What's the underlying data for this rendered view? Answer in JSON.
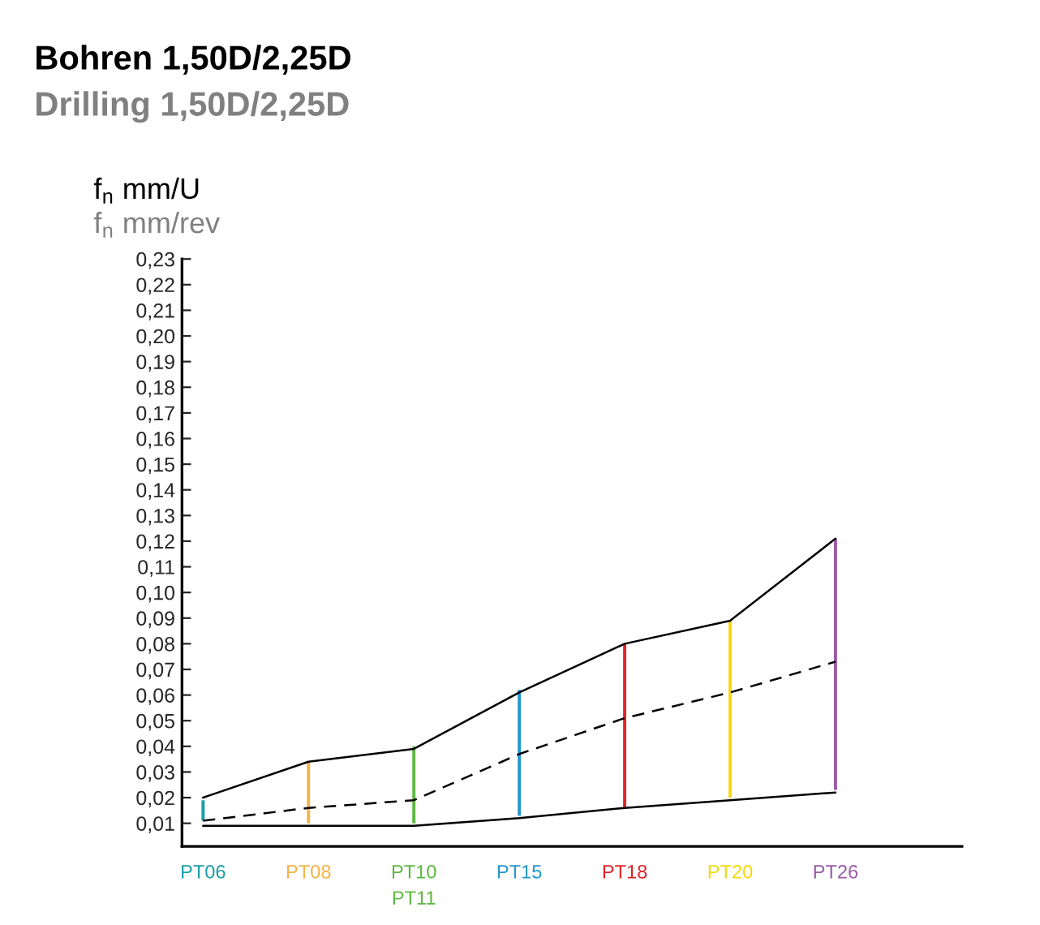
{
  "chart_data": {
    "type": "bar",
    "title": "Bohren 1,50D/2,25D",
    "subtitle": "Drilling 1,50D/2,25D",
    "ylabel": "f$_{n}$ mm/U",
    "annotations": [
      "f$_{n}$ mm/rev"
    ],
    "categories": [
      "PT06",
      "PT08",
      "PT10\nPT11",
      "PT15",
      "PT18",
      "PT20",
      "PT26"
    ],
    "ylim": [
      0.001,
      0.23
    ],
    "yticks": [
      {
        "value": 0.01,
        "label": "0,01"
      },
      {
        "value": 0.02,
        "label": "0,02"
      },
      {
        "value": 0.03,
        "label": "0,03"
      },
      {
        "value": 0.04,
        "label": "0,04"
      },
      {
        "value": 0.05,
        "label": "0,05"
      },
      {
        "value": 0.06,
        "label": "0,06"
      },
      {
        "value": 0.07,
        "label": "0,07"
      },
      {
        "value": 0.08,
        "label": "0,08"
      },
      {
        "value": 0.09,
        "label": "0,09"
      },
      {
        "value": 0.1,
        "label": "0,10"
      },
      {
        "value": 0.11,
        "label": "0,11"
      },
      {
        "value": 0.12,
        "label": "0,12"
      },
      {
        "value": 0.13,
        "label": "0,13"
      },
      {
        "value": 0.14,
        "label": "0,14"
      },
      {
        "value": 0.15,
        "label": "0,15"
      },
      {
        "value": 0.16,
        "label": "0,16"
      },
      {
        "value": 0.17,
        "label": "0,17"
      },
      {
        "value": 0.18,
        "label": "0,18"
      },
      {
        "value": 0.19,
        "label": "0,19"
      },
      {
        "value": 0.2,
        "label": "0,20"
      },
      {
        "value": 0.21,
        "label": "0,21"
      },
      {
        "value": 0.22,
        "label": "0,22"
      },
      {
        "value": 0.23,
        "label": "0,23"
      }
    ],
    "series": [
      {
        "colors": [
          "#1a9ea8",
          "#f6b347",
          "#5cb940",
          "#2497cf",
          "#e3232a",
          "#f5d90a",
          "#9b5aa8"
        ],
        "base": [
          0.011,
          0.01,
          0.01,
          0.013,
          0.016,
          0.02,
          0.023
        ],
        "values": [
          0.008,
          0.024,
          0.03,
          0.049,
          0.064,
          0.069,
          0.098
        ]
      },
      {
        "type": "line",
        "color": "#000000",
        "line_style": "solid",
        "values": [
          0.02,
          0.034,
          0.039,
          0.061,
          0.08,
          0.089,
          0.121
        ]
      },
      {
        "type": "line",
        "color": "#000000",
        "line_style": "dashed",
        "values": [
          0.011,
          0.016,
          0.019,
          0.037,
          0.051,
          0.061,
          0.073
        ]
      },
      {
        "type": "line",
        "color": "#000000",
        "line_style": "solid",
        "values": [
          0.009,
          0.009,
          0.009,
          0.012,
          0.016,
          0.019,
          0.022
        ]
      }
    ],
    "grid": false,
    "legend": false
  }
}
